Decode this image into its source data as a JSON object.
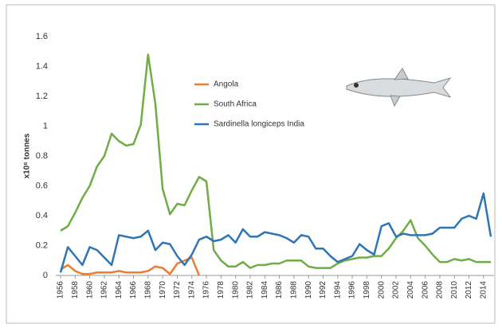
{
  "chart_data": {
    "type": "line",
    "y_label": "x10⁶ tonnes",
    "x": [
      1956,
      1957,
      1958,
      1959,
      1960,
      1961,
      1962,
      1963,
      1964,
      1965,
      1966,
      1967,
      1968,
      1969,
      1970,
      1971,
      1972,
      1973,
      1974,
      1975,
      1976,
      1977,
      1978,
      1979,
      1980,
      1981,
      1982,
      1983,
      1984,
      1985,
      1986,
      1987,
      1988,
      1989,
      1990,
      1991,
      1992,
      1993,
      1994,
      1995,
      1996,
      1997,
      1998,
      1999,
      2000,
      2001,
      2002,
      2003,
      2004,
      2005,
      2006,
      2007,
      2008,
      2009,
      2010,
      2011,
      2012,
      2013,
      2014,
      2015
    ],
    "xlim": [
      1956,
      2015
    ],
    "xticks": [
      1956,
      1958,
      1960,
      1962,
      1964,
      1966,
      1968,
      1970,
      1972,
      1974,
      1976,
      1978,
      1980,
      1982,
      1984,
      1986,
      1988,
      1990,
      1992,
      1994,
      1996,
      1998,
      2000,
      2002,
      2004,
      2006,
      2008,
      2010,
      2012,
      2014
    ],
    "ylim": [
      0,
      1.6
    ],
    "yticks": [
      0,
      0.2,
      0.4,
      0.6,
      0.8,
      1,
      1.2,
      1.4,
      1.6
    ],
    "grid": false,
    "series": [
      {
        "name": "Angola",
        "color": "#ed7d31",
        "values": [
          0.04,
          0.07,
          0.03,
          0.01,
          0.01,
          0.02,
          0.02,
          0.02,
          0.03,
          0.02,
          0.02,
          0.02,
          0.03,
          0.06,
          0.05,
          0.01,
          0.08,
          0.1,
          0.12,
          0,
          null,
          null,
          null,
          null,
          null,
          null,
          null,
          null,
          null,
          null,
          null,
          null,
          null,
          null,
          null,
          null,
          null,
          null,
          null,
          null,
          null,
          null,
          null,
          null,
          null,
          null,
          null,
          null,
          null,
          null,
          null,
          null,
          null,
          null,
          null,
          null,
          null,
          null,
          null,
          null
        ]
      },
      {
        "name": "South Africa",
        "color": "#70ad47",
        "values": [
          0.3,
          0.33,
          0.42,
          0.52,
          0.6,
          0.73,
          0.8,
          0.95,
          0.9,
          0.87,
          0.88,
          1.01,
          1.48,
          1.15,
          0.58,
          0.41,
          0.48,
          0.47,
          0.57,
          0.66,
          0.63,
          0.17,
          0.1,
          0.06,
          0.06,
          0.09,
          0.05,
          0.07,
          0.07,
          0.08,
          0.08,
          0.1,
          0.1,
          0.1,
          0.06,
          0.05,
          0.05,
          0.05,
          0.08,
          0.1,
          0.11,
          0.12,
          0.12,
          0.13,
          0.13,
          0.18,
          0.25,
          0.3,
          0.37,
          0.25,
          0.2,
          0.14,
          0.09,
          0.09,
          0.11,
          0.1,
          0.11,
          0.09,
          0.09,
          0.09
        ]
      },
      {
        "name": "Sardinella longiceps India",
        "color": "#2e75b6",
        "values": [
          0.02,
          0.19,
          0.13,
          0.07,
          0.19,
          0.17,
          0.12,
          0.07,
          0.27,
          0.26,
          0.25,
          0.26,
          0.3,
          0.17,
          0.22,
          0.21,
          0.13,
          0.07,
          0.14,
          0.24,
          0.26,
          0.23,
          0.24,
          0.27,
          0.22,
          0.31,
          0.26,
          0.26,
          0.29,
          0.28,
          0.27,
          0.25,
          0.22,
          0.27,
          0.26,
          0.18,
          0.18,
          0.13,
          0.09,
          0.11,
          0.13,
          0.21,
          0.17,
          0.14,
          0.33,
          0.35,
          0.26,
          0.28,
          0.27,
          0.27,
          0.27,
          0.28,
          0.32,
          0.32,
          0.32,
          0.38,
          0.4,
          0.38,
          0.55,
          0.26
        ]
      }
    ]
  }
}
